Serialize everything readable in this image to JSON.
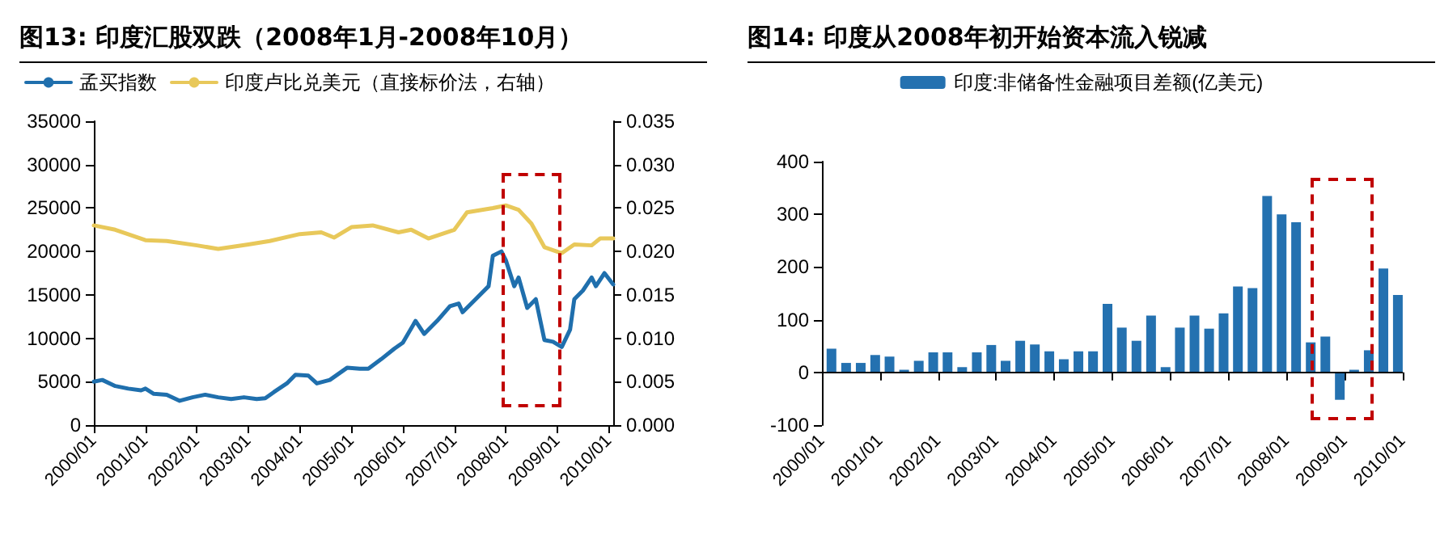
{
  "chart_data": [
    {
      "type": "line",
      "title": "图13:  印度汇股双跌（2008年1月-2008年10月）",
      "legend": "top left",
      "grid": false,
      "marker": "none",
      "line_style": "solid",
      "xlim": [
        "2000-01",
        "2010-02"
      ],
      "xticks": [
        {
          "value": "2000-01",
          "label": "2000/01"
        },
        {
          "value": "2001-01",
          "label": "2001/01"
        },
        {
          "value": "2002-01",
          "label": "2002/01"
        },
        {
          "value": "2003-01",
          "label": "2003/01"
        },
        {
          "value": "2004-01",
          "label": "2004/01"
        },
        {
          "value": "2005-01",
          "label": "2005/01"
        },
        {
          "value": "2006-01",
          "label": "2006/01"
        },
        {
          "value": "2007-01",
          "label": "2007/01"
        },
        {
          "value": "2008-01",
          "label": "2008/01"
        },
        {
          "value": "2009-01",
          "label": "2009/01"
        },
        {
          "value": "2010-01",
          "label": "2010/01"
        }
      ],
      "ylim": [
        0,
        35000
      ],
      "yticks": [
        0,
        5000,
        10000,
        15000,
        20000,
        25000,
        30000,
        35000
      ],
      "y2lim": [
        0,
        0.035
      ],
      "y2ticks": [
        {
          "value": 0,
          "label": "0.000"
        },
        {
          "value": 0.005,
          "label": "0.005"
        },
        {
          "value": 0.01,
          "label": "0.010"
        },
        {
          "value": 0.015,
          "label": "0.015"
        },
        {
          "value": 0.02,
          "label": "0.020"
        },
        {
          "value": 0.025,
          "label": "0.025"
        },
        {
          "value": 0.03,
          "label": "0.030"
        },
        {
          "value": 0.035,
          "label": "0.035"
        }
      ],
      "series": [
        {
          "name": "孟买指数",
          "color": "#1f6fad",
          "x": [
            "2000-01",
            "2000-03",
            "2000-06",
            "2000-09",
            "2000-12",
            "2001-01",
            "2001-03",
            "2001-06",
            "2001-09",
            "2001-12",
            "2002-03",
            "2002-06",
            "2002-09",
            "2002-12",
            "2003-03",
            "2003-05",
            "2003-07",
            "2003-10",
            "2003-12",
            "2004-03",
            "2004-05",
            "2004-08",
            "2004-12",
            "2005-03",
            "2005-05",
            "2005-08",
            "2005-11",
            "2006-01",
            "2006-04",
            "2006-06",
            "2006-09",
            "2006-12",
            "2007-02",
            "2007-03",
            "2007-06",
            "2007-09",
            "2007-10",
            "2007-12",
            "2008-01",
            "2008-03",
            "2008-04",
            "2008-06",
            "2008-08",
            "2008-10",
            "2008-12",
            "2009-02",
            "2009-04",
            "2009-05",
            "2009-07",
            "2009-09",
            "2009-10",
            "2009-12",
            "2010-02"
          ],
          "values": [
            5000,
            5200,
            4500,
            4200,
            4000,
            4200,
            3600,
            3500,
            2800,
            3200,
            3500,
            3200,
            3000,
            3200,
            3000,
            3100,
            3800,
            4800,
            5800,
            5700,
            4800,
            5200,
            6600,
            6500,
            6500,
            7600,
            8800,
            9500,
            12000,
            10500,
            12000,
            13700,
            14000,
            13000,
            14500,
            16000,
            19500,
            20000,
            19000,
            16000,
            17000,
            13500,
            14500,
            9800,
            9600,
            9000,
            11000,
            14500,
            15500,
            17000,
            16000,
            17500,
            16200
          ]
        },
        {
          "name": "印度卢比兑美元（直接标价法，右轴）",
          "color": "#e8c85a",
          "axis": "y2",
          "x": [
            "2000-01",
            "2000-06",
            "2001-01",
            "2001-06",
            "2002-01",
            "2002-06",
            "2003-01",
            "2003-06",
            "2004-01",
            "2004-06",
            "2004-09",
            "2005-01",
            "2005-06",
            "2005-12",
            "2006-03",
            "2006-07",
            "2007-01",
            "2007-04",
            "2007-10",
            "2008-01",
            "2008-04",
            "2008-07",
            "2008-10",
            "2009-02",
            "2009-05",
            "2009-09",
            "2009-11",
            "2010-02"
          ],
          "values": [
            0.023,
            0.0225,
            0.0213,
            0.0212,
            0.0207,
            0.0203,
            0.0208,
            0.0212,
            0.022,
            0.0222,
            0.0216,
            0.0228,
            0.023,
            0.0222,
            0.0225,
            0.0215,
            0.0225,
            0.0245,
            0.025,
            0.0253,
            0.0248,
            0.0232,
            0.0205,
            0.0198,
            0.0208,
            0.0207,
            0.0215,
            0.0215
          ]
        }
      ]
    },
    {
      "type": "bar",
      "title": "图14:  印度从2008年初开始资本流入锐减",
      "legend": "top",
      "grid": false,
      "xlim": [
        "2000-01",
        "2010-01"
      ],
      "xticks": [
        {
          "value": "2000-01",
          "label": "2000/01"
        },
        {
          "value": "2001-01",
          "label": "2001/01"
        },
        {
          "value": "2002-01",
          "label": "2002/01"
        },
        {
          "value": "2003-01",
          "label": "2003/01"
        },
        {
          "value": "2004-01",
          "label": "2004/01"
        },
        {
          "value": "2005-01",
          "label": "2005/01"
        },
        {
          "value": "2006-01",
          "label": "2006/01"
        },
        {
          "value": "2007-01",
          "label": "2007/01"
        },
        {
          "value": "2008-01",
          "label": "2008/01"
        },
        {
          "value": "2009-01",
          "label": "2009/01"
        },
        {
          "value": "2010-01",
          "label": "2010/01"
        }
      ],
      "ylim": [
        -100,
        400
      ],
      "yticks": [
        -100,
        0,
        100,
        200,
        300,
        400
      ],
      "ref_lines": [
        {
          "axis": "y",
          "value": 0,
          "color": "#000000"
        }
      ],
      "series": [
        {
          "name": "印度:非储备性金融项目差额(亿美元)",
          "color": "#2471b0",
          "x": [
            "2000-03",
            "2000-06",
            "2000-09",
            "2000-12",
            "2001-03",
            "2001-06",
            "2001-09",
            "2001-12",
            "2002-03",
            "2002-06",
            "2002-09",
            "2002-12",
            "2003-03",
            "2003-06",
            "2003-09",
            "2003-12",
            "2004-03",
            "2004-06",
            "2004-09",
            "2004-12",
            "2005-03",
            "2005-06",
            "2005-09",
            "2005-12",
            "2006-03",
            "2006-06",
            "2006-09",
            "2006-12",
            "2007-03",
            "2007-06",
            "2007-09",
            "2007-12",
            "2008-03",
            "2008-06",
            "2008-09",
            "2008-12",
            "2009-03",
            "2009-06",
            "2009-09",
            "2009-12"
          ],
          "values": [
            45,
            18,
            18,
            33,
            30,
            5,
            22,
            38,
            38,
            10,
            38,
            52,
            22,
            60,
            53,
            40,
            25,
            40,
            40,
            130,
            85,
            60,
            108,
            10,
            85,
            108,
            83,
            112,
            163,
            160,
            335,
            300,
            285,
            57,
            68,
            -52,
            5,
            42,
            197,
            147
          ]
        }
      ]
    }
  ]
}
